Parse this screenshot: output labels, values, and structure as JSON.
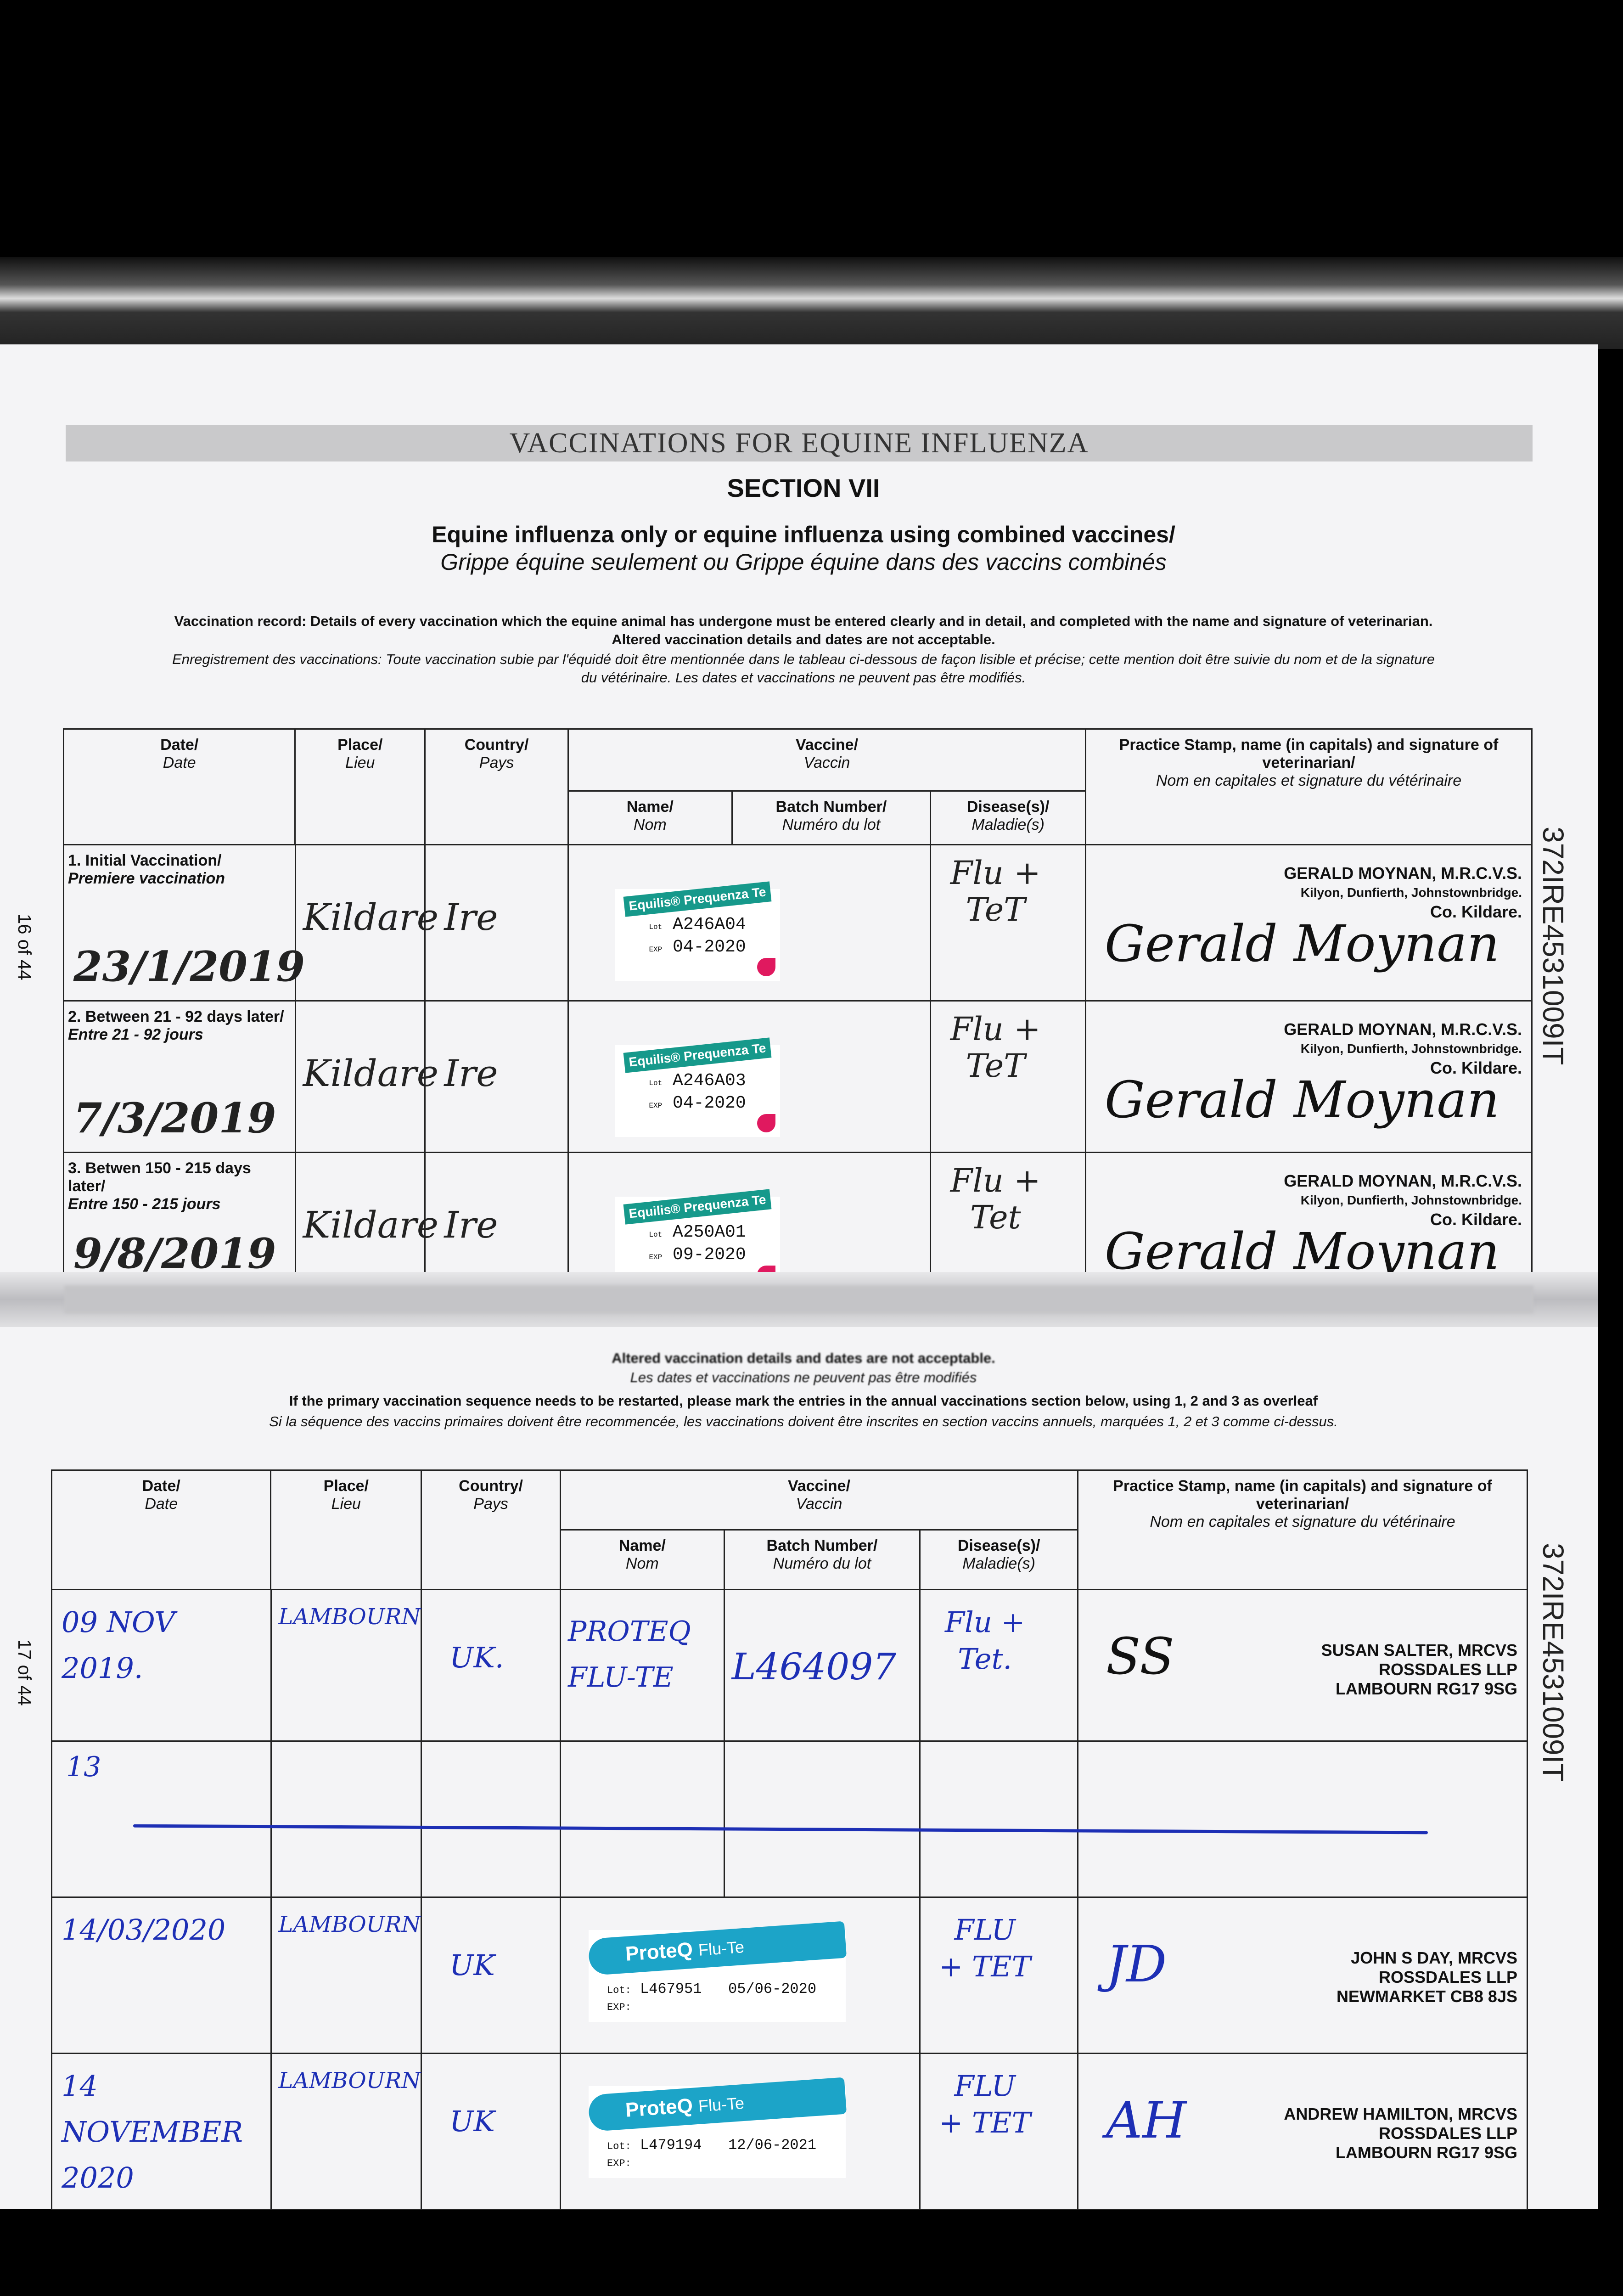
{
  "header": {
    "band_title": "VACCINATIONS FOR EQUINE INFLUENZA",
    "section": "SECTION VII",
    "subtitle_en": "Equine influenza only or equine influenza using combined vaccines/",
    "subtitle_fr": "Grippe équine seulement ou Grippe équine dans des vaccins combinés"
  },
  "notes": {
    "en1": "Vaccination record: Details of every vaccination which the equine animal has undergone must be entered clearly and in detail, and completed with the name and signature of veterinarian.",
    "en2": "Altered vaccination details and dates are not acceptable.",
    "fr1": "Enregistrement des vaccinations: Toute vaccination subie par l'équidé doit être mentionnée dans le tableau ci-dessous de façon lisible et précise; cette mention doit être suivie du nom et de la signature",
    "fr2": "du vétérinaire. Les dates et vaccinations ne peuvent pas être modifiés."
  },
  "columns": {
    "date": "Date/",
    "date_fr": "Date",
    "place": "Place/",
    "place_fr": "Lieu",
    "country": "Country/",
    "country_fr": "Pays",
    "vaccine": "Vaccine/",
    "vaccine_fr": "Vaccin",
    "name": "Name/",
    "name_fr": "Nom",
    "batch": "Batch Number/",
    "batch_fr": "Numéro du lot",
    "disease": "Disease(s)/",
    "disease_fr": "Maladie(s)",
    "stamp": "Practice Stamp, name (in capitals) and signature of veterinarian/",
    "stamp_fr": "Nom en capitales et signature du vétérinaire"
  },
  "primary": [
    {
      "label": "1. Initial Vaccination/",
      "label_fr": "Premiere vaccination",
      "date": "23/1/2019",
      "place": "Kildare",
      "country": "Ire",
      "vaccine_label": "Equilis® Prequenza Te",
      "lot": "A246A04",
      "exp": "04-2020",
      "disease": "Flu + TeT",
      "vet_name": "GERALD MOYNAN, M.R.C.V.S.",
      "vet_addr1": "Kilyon, Dunfierth, Johnstownbridge.",
      "vet_addr2": "Co. Kildare.",
      "signature": "Gerald Moynan"
    },
    {
      "label": "2. Between 21 - 92 days later/",
      "label_fr": "Entre 21 - 92 jours",
      "date": "7/3/2019",
      "place": "Kildare",
      "country": "Ire",
      "vaccine_label": "Equilis® Prequenza Te",
      "lot": "A246A03",
      "exp": "04-2020",
      "disease": "Flu + TeT",
      "vet_name": "GERALD MOYNAN, M.R.C.V.S.",
      "vet_addr1": "Kilyon, Dunfierth, Johnstownbridge.",
      "vet_addr2": "Co. Kildare.",
      "signature": "Gerald Moynan"
    },
    {
      "label": "3. Betwen 150 - 215 days later/",
      "label_fr": "Entre 150 - 215 jours",
      "date": "9/8/2019",
      "place": "Kildare",
      "country": "Ire",
      "vaccine_label": "Equilis® Prequenza Te",
      "lot": "A250A01",
      "exp": "09-2020",
      "disease": "Flu + Tet",
      "vet_name": "GERALD MOYNAN, M.R.C.V.S.",
      "vet_addr1": "Kilyon, Dunfierth, Johnstownbridge.",
      "vet_addr2": "Co. Kildare.",
      "signature": "Gerald Moynan"
    }
  ],
  "middle": {
    "en_bold": "Altered vaccination details and dates are not acceptable.",
    "fr": "Les dates et vaccinations ne peuvent pas être modifiés",
    "en_restart": "If the primary vaccination sequence needs to be restarted, please mark the entries in the annual vaccinations section below, using 1, 2 and 3 as overleaf",
    "fr_restart": "Si la séquence des vaccins primaires doivent être recommencée, les vaccinations doivent être inscrites en section vaccins annuels, marquées 1, 2 et 3 comme ci-dessus."
  },
  "annual": [
    {
      "date": "09 NOV 2019.",
      "place": "LAMBOURN",
      "country": "UK.",
      "name": "PROTEQ FLU-TE",
      "batch": "L464097",
      "disease": "Flu + Tet.",
      "vet_name": "SUSAN SALTER, MRCVS",
      "vet_addr1": "ROSSDALES LLP",
      "vet_addr2": "LAMBOURN RG17 9SG",
      "signature": "SS"
    },
    {
      "date": "13",
      "struck": true
    },
    {
      "date": "14/03/2020",
      "place": "LAMBOURN",
      "country": "UK",
      "vaccine_label": "ProteQ",
      "vaccine_label2": "Flu-Te",
      "lot_label": "Lot:",
      "exp_label": "EXP:",
      "lot": "L467951",
      "exp": "05/06-2020",
      "disease": "FLU + TET",
      "vet_name": "JOHN S DAY, MRCVS",
      "vet_addr1": "ROSSDALES LLP",
      "vet_addr2": "NEWMARKET CB8 8JS",
      "signature": "JD"
    },
    {
      "date": "14 NOVEMBER 2020",
      "place": "LAMBOURN",
      "country": "UK",
      "vaccine_label": "ProteQ",
      "vaccine_label2": "Flu-Te",
      "lot_label": "Lot:",
      "exp_label": "EXP:",
      "lot": "L479194",
      "exp": "12/06-2021",
      "disease": "FLU + TET",
      "vet_name": "ANDREW HAMILTON, MRCVS",
      "vet_addr1": "ROSSDALES LLP",
      "vet_addr2": "LAMBOURN RG17 9SG",
      "signature": "AH"
    }
  ],
  "margins": {
    "page_top": "16 of 44",
    "page_bottom": "17 of 44",
    "passport_id": "372IRE4531009IT"
  },
  "lot_short": "Lot",
  "exp_short": "EXP"
}
